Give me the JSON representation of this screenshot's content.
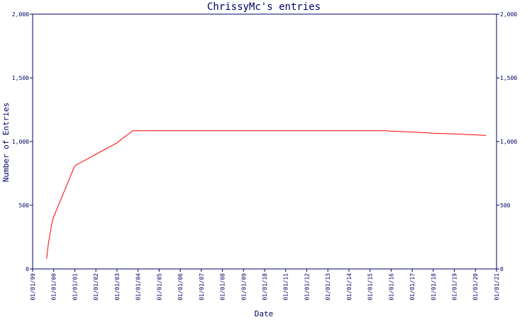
{
  "chart_data": {
    "type": "line",
    "title": "ChrissyMc's entries",
    "xlabel": "Date",
    "ylabel": "Number of Entries",
    "x_ticks": [
      "01/01/99",
      "01/01/00",
      "01/01/01",
      "01/01/02",
      "01/01/03",
      "01/01/04",
      "01/01/05",
      "01/01/06",
      "01/01/07",
      "01/01/08",
      "01/01/09",
      "01/01/10",
      "01/01/11",
      "01/01/12",
      "01/01/13",
      "01/01/14",
      "01/01/15",
      "01/01/16",
      "01/01/17",
      "01/01/18",
      "01/01/19",
      "01/01/20",
      "01/01/21"
    ],
    "y_ticks": [
      "0",
      "500",
      "1,000",
      "1,500",
      "2,000"
    ],
    "xlim": [
      "1999-01-01",
      "2021-01-01"
    ],
    "ylim": [
      0,
      2000
    ],
    "grid": false,
    "y_axis_right_mirror": true,
    "series": [
      {
        "color": "#ff0000",
        "x": [
          "1999-09-01",
          "1999-10-01",
          "1999-12-01",
          "2000-01-01",
          "2001-01-01",
          "2002-01-01",
          "2003-01-01",
          "2003-10-01",
          "2004-01-01",
          "2005-01-01",
          "2008-01-01",
          "2012-01-01",
          "2015-01-01",
          "2015-10-01",
          "2016-01-01",
          "2017-01-01",
          "2018-01-01",
          "2019-01-01",
          "2020-01-01",
          "2020-07-01"
        ],
        "y": [
          80,
          200,
          360,
          410,
          810,
          900,
          990,
          1085,
          1085,
          1085,
          1085,
          1085,
          1085,
          1085,
          1082,
          1075,
          1065,
          1060,
          1052,
          1048
        ]
      }
    ]
  }
}
